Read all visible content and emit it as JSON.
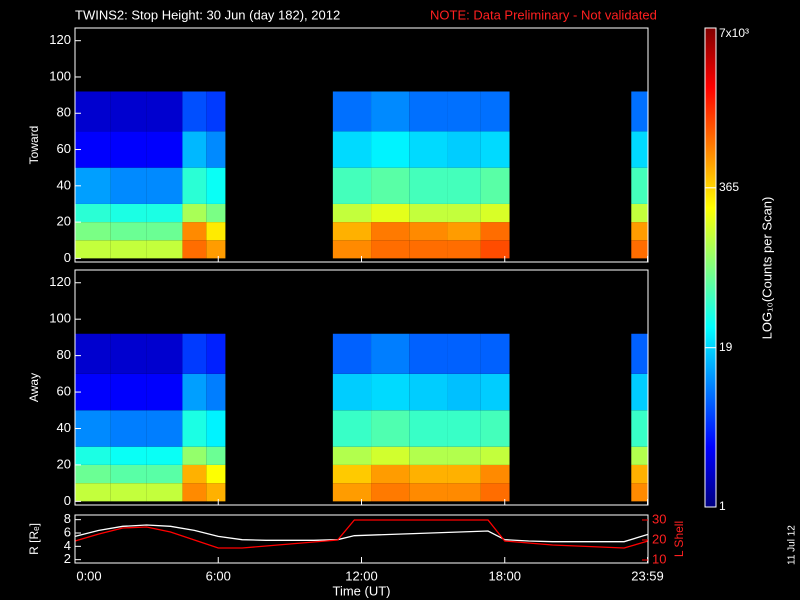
{
  "title": "TWINS2: Stop Height: 30 Jun (day 182), 2012",
  "note": "NOTE: Data Preliminary - Not validated",
  "stamp": "11 Jul 12",
  "colorbar": {
    "label": "LOG₁₀(Counts per Scan)",
    "log": true,
    "clim": [
      1,
      7000
    ],
    "ticks": [
      1,
      19,
      365,
      {
        "value": 7000,
        "label": "7x10³"
      }
    ]
  },
  "chart_data": [
    {
      "type": "heatmap",
      "ylabel": "Toward",
      "x_bins": [
        0,
        1.5,
        3,
        4.5,
        5.5,
        6.3,
        10.8,
        12.4,
        14,
        15.6,
        17,
        18.2,
        23.3,
        24
      ],
      "y_bins": [
        0,
        10,
        20,
        30,
        50,
        70,
        92
      ],
      "z": [
        [
          150,
          150,
          150,
          900,
          600,
          null,
          700,
          900,
          900,
          900,
          1200,
          null,
          900
        ],
        [
          80,
          70,
          70,
          700,
          300,
          null,
          500,
          800,
          700,
          600,
          900,
          null,
          600
        ],
        [
          40,
          35,
          35,
          120,
          80,
          null,
          150,
          200,
          150,
          150,
          180,
          null,
          150
        ],
        [
          12,
          10,
          10,
          40,
          30,
          null,
          50,
          60,
          50,
          50,
          60,
          null,
          50
        ],
        [
          3,
          3,
          3,
          15,
          10,
          null,
          20,
          25,
          20,
          18,
          20,
          null,
          20
        ],
        [
          2,
          2,
          2,
          6,
          5,
          null,
          8,
          10,
          8,
          8,
          8,
          null,
          8
        ]
      ],
      "xlim": [
        0,
        24
      ],
      "xticks": [
        0,
        6,
        12,
        18,
        23.98
      ],
      "ylim": [
        -2,
        127
      ],
      "yticks": [
        0,
        20,
        40,
        60,
        80,
        100,
        120
      ]
    },
    {
      "type": "heatmap",
      "ylabel": "Away",
      "x_bins": [
        0,
        1.5,
        3,
        4.5,
        5.5,
        6.3,
        10.8,
        12.4,
        14,
        15.6,
        17,
        18.2,
        23.3,
        24
      ],
      "y_bins": [
        0,
        10,
        20,
        30,
        50,
        70,
        92
      ],
      "z": [
        [
          150,
          150,
          150,
          700,
          500,
          null,
          600,
          800,
          700,
          700,
          900,
          null,
          700
        ],
        [
          70,
          60,
          60,
          500,
          250,
          null,
          400,
          600,
          500,
          500,
          700,
          null,
          500
        ],
        [
          35,
          30,
          30,
          100,
          70,
          null,
          130,
          170,
          130,
          130,
          150,
          null,
          130
        ],
        [
          10,
          9,
          9,
          35,
          25,
          null,
          45,
          55,
          45,
          45,
          50,
          null,
          45
        ],
        [
          3,
          3,
          3,
          12,
          9,
          null,
          18,
          20,
          18,
          16,
          18,
          null,
          18
        ],
        [
          2,
          2,
          2,
          5,
          4,
          null,
          7,
          9,
          7,
          7,
          7,
          null,
          7
        ]
      ],
      "xlim": [
        0,
        24
      ],
      "xticks": [
        0,
        6,
        12,
        18,
        23.98
      ],
      "ylim": [
        -2,
        127
      ],
      "yticks": [
        0,
        20,
        40,
        60,
        80,
        100,
        120
      ]
    },
    {
      "type": "line",
      "ylabel": "R [Rₑ]",
      "y2label": "L Shell",
      "xlabel": "Time (UT)",
      "x": [
        0,
        1,
        2,
        3,
        4,
        5,
        6,
        7,
        8,
        9,
        10,
        11,
        11.7,
        17.3,
        18,
        19,
        20,
        21,
        22,
        23,
        24
      ],
      "series": [
        {
          "color": "#ffffff",
          "axis": "y",
          "values": [
            5.5,
            6.4,
            7.0,
            7.2,
            7.0,
            6.4,
            5.5,
            5.0,
            4.9,
            4.9,
            4.9,
            5.0,
            5.6,
            6.3,
            5.0,
            4.8,
            4.7,
            4.7,
            4.7,
            4.7,
            5.8
          ]
        },
        {
          "color": "#ff0000",
          "axis": "y2",
          "values": [
            19.5,
            23,
            26,
            26.5,
            24,
            20,
            16,
            16,
            17,
            18,
            19,
            20,
            30,
            30,
            19.5,
            18.5,
            17.5,
            17,
            16.5,
            16,
            19.5
          ]
        }
      ],
      "xlim": [
        0,
        24
      ],
      "xticks": [
        {
          "value": 0,
          "label": "0:00"
        },
        {
          "value": 6,
          "label": "6:00"
        },
        {
          "value": 12,
          "label": "12:00"
        },
        {
          "value": 18,
          "label": "18:00"
        },
        {
          "value": 23.98,
          "label": "23:59"
        }
      ],
      "ylim": [
        1.5,
        8.7
      ],
      "yticks": [
        2,
        4,
        6,
        8
      ],
      "y2lim": [
        8.5,
        32.5
      ],
      "y2ticks": [
        10,
        20,
        30
      ]
    }
  ]
}
